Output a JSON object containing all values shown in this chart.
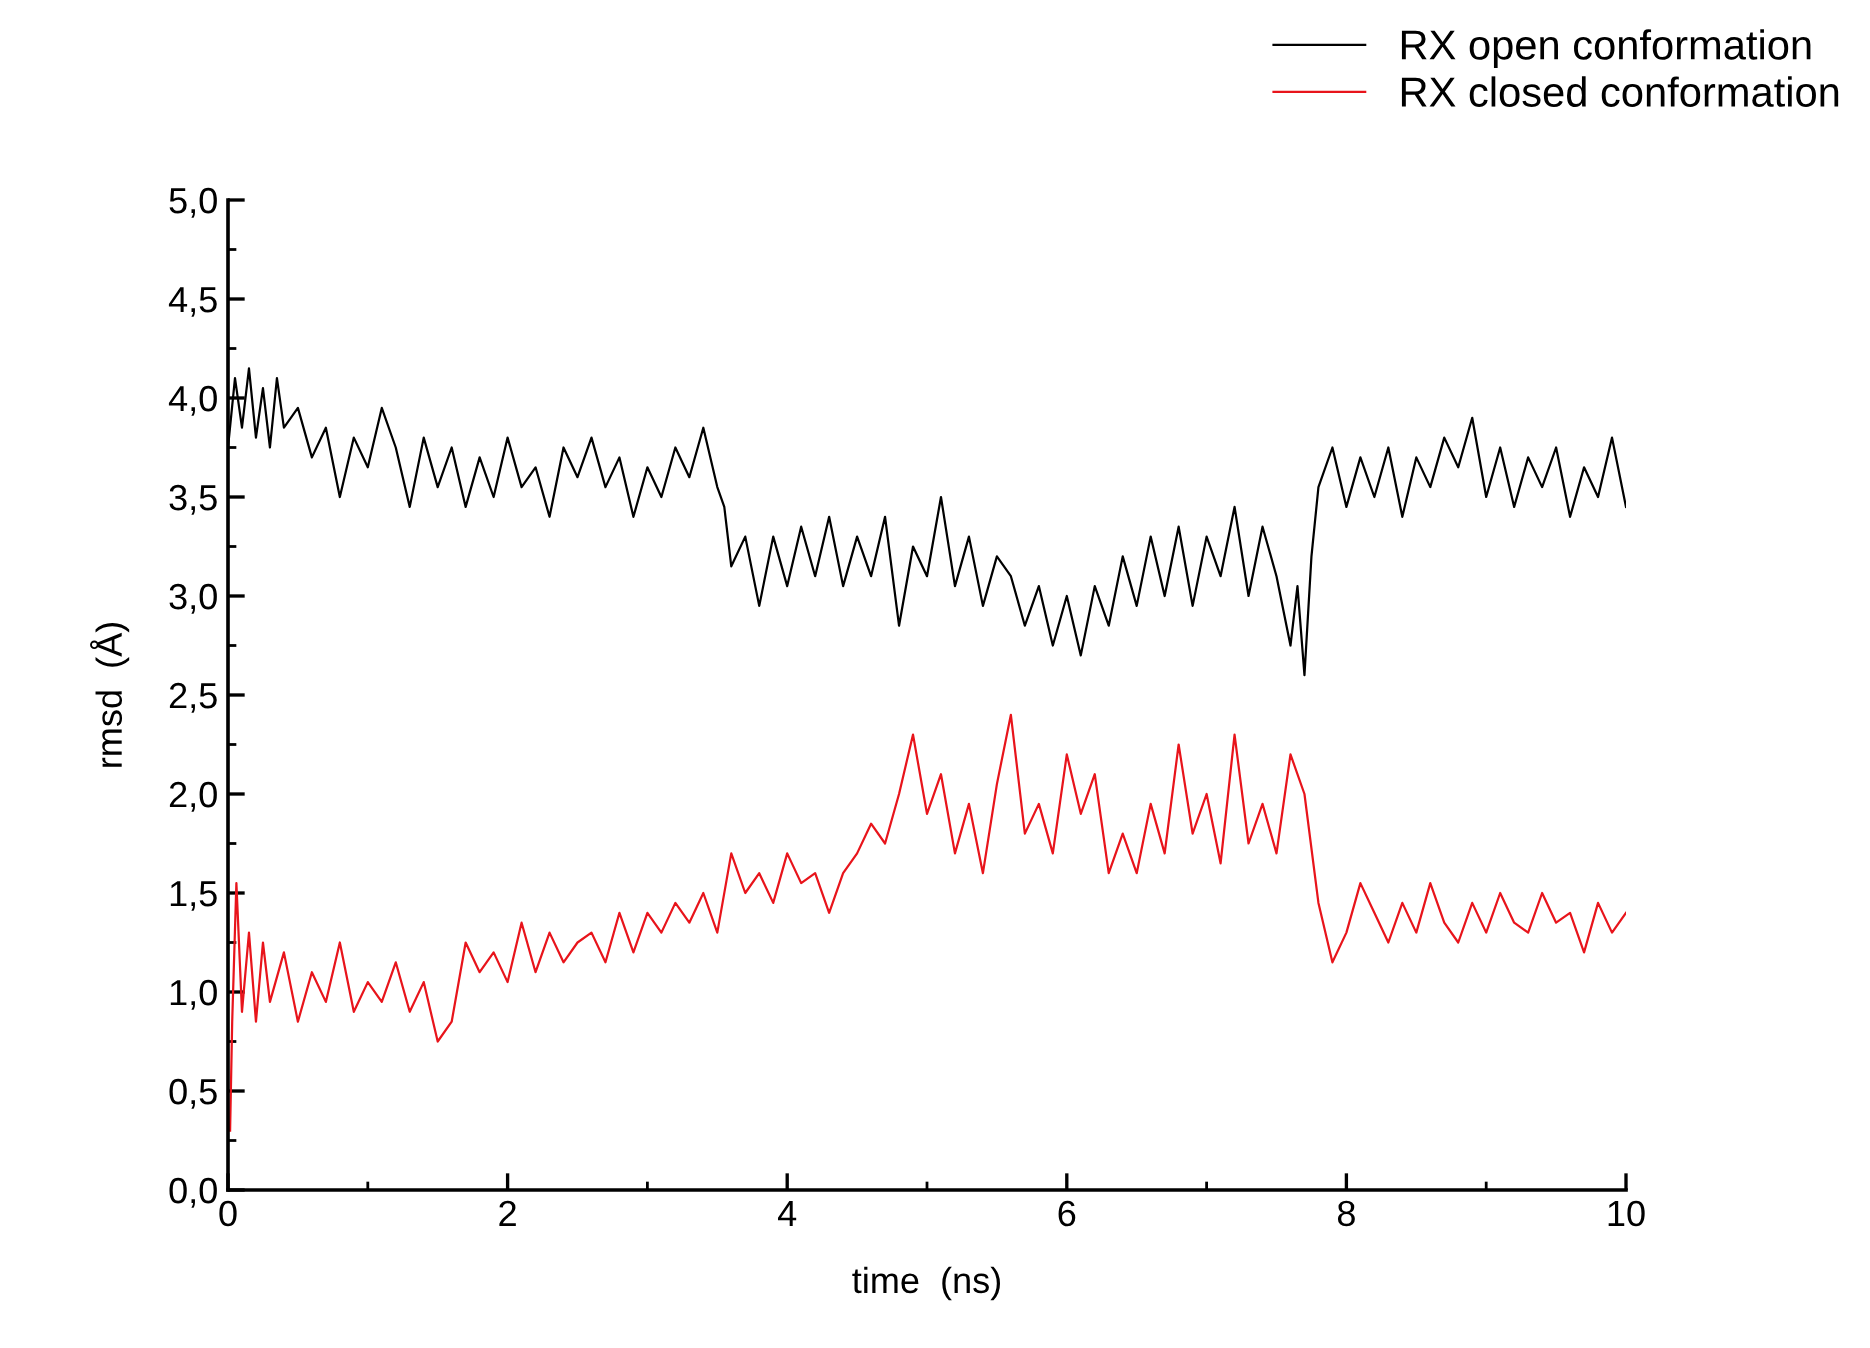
{
  "chart_data": {
    "type": "line",
    "xlabel": "time  (ns)",
    "ylabel": "rmsd  (Å)",
    "xlim": [
      0,
      10
    ],
    "xticks": [
      0,
      2,
      4,
      6,
      8,
      10
    ],
    "ylim": [
      0,
      5
    ],
    "yticks": [
      {
        "value": 0,
        "label": "0,0"
      },
      {
        "value": 0.5,
        "label": "0,5"
      },
      {
        "value": 1,
        "label": "1,0"
      },
      {
        "value": 1.5,
        "label": "1,5"
      },
      {
        "value": 2,
        "label": "2,0"
      },
      {
        "value": 2.5,
        "label": "2,5"
      },
      {
        "value": 3,
        "label": "3,0"
      },
      {
        "value": 3.5,
        "label": "3,5"
      },
      {
        "value": 4,
        "label": "4,0"
      },
      {
        "value": 4.5,
        "label": "4,5"
      },
      {
        "value": 5,
        "label": "5,0"
      }
    ],
    "grid": false,
    "legend": "top right",
    "marker": "none",
    "line_style": "solid",
    "series": [
      {
        "name": "RX open conformation",
        "color": "#000000",
        "x": [
          0,
          0.05,
          0.1,
          0.15,
          0.2,
          0.25,
          0.3,
          0.35,
          0.4,
          0.5,
          0.6,
          0.7,
          0.8,
          0.9,
          1.0,
          1.1,
          1.2,
          1.3,
          1.4,
          1.5,
          1.6,
          1.7,
          1.8,
          1.9,
          2.0,
          2.1,
          2.2,
          2.3,
          2.4,
          2.5,
          2.6,
          2.7,
          2.8,
          2.9,
          3.0,
          3.1,
          3.2,
          3.3,
          3.4,
          3.5,
          3.55,
          3.6,
          3.7,
          3.8,
          3.9,
          4.0,
          4.1,
          4.2,
          4.3,
          4.4,
          4.5,
          4.6,
          4.7,
          4.8,
          4.9,
          5.0,
          5.1,
          5.2,
          5.3,
          5.4,
          5.5,
          5.6,
          5.7,
          5.8,
          5.9,
          6.0,
          6.1,
          6.2,
          6.3,
          6.4,
          6.5,
          6.6,
          6.7,
          6.8,
          6.9,
          7.0,
          7.1,
          7.2,
          7.3,
          7.4,
          7.5,
          7.6,
          7.65,
          7.7,
          7.75,
          7.8,
          7.9,
          8.0,
          8.1,
          8.2,
          8.3,
          8.4,
          8.5,
          8.6,
          8.7,
          8.8,
          8.9,
          9.0,
          9.1,
          9.2,
          9.3,
          9.4,
          9.5,
          9.6,
          9.7,
          9.8,
          9.9,
          10.0
        ],
        "values": [
          3.75,
          4.1,
          3.85,
          4.15,
          3.8,
          4.05,
          3.75,
          4.1,
          3.85,
          3.95,
          3.7,
          3.85,
          3.5,
          3.8,
          3.65,
          3.95,
          3.75,
          3.45,
          3.8,
          3.55,
          3.75,
          3.45,
          3.7,
          3.5,
          3.8,
          3.55,
          3.65,
          3.4,
          3.75,
          3.6,
          3.8,
          3.55,
          3.7,
          3.4,
          3.65,
          3.5,
          3.75,
          3.6,
          3.85,
          3.55,
          3.45,
          3.15,
          3.3,
          2.95,
          3.3,
          3.05,
          3.35,
          3.1,
          3.4,
          3.05,
          3.3,
          3.1,
          3.4,
          2.85,
          3.25,
          3.1,
          3.5,
          3.05,
          3.3,
          2.95,
          3.2,
          3.1,
          2.85,
          3.05,
          2.75,
          3.0,
          2.7,
          3.05,
          2.85,
          3.2,
          2.95,
          3.3,
          3.0,
          3.35,
          2.95,
          3.3,
          3.1,
          3.45,
          3.0,
          3.35,
          3.1,
          2.75,
          3.05,
          2.6,
          3.2,
          3.55,
          3.75,
          3.45,
          3.7,
          3.5,
          3.75,
          3.4,
          3.7,
          3.55,
          3.8,
          3.65,
          3.9,
          3.5,
          3.75,
          3.45,
          3.7,
          3.55,
          3.75,
          3.4,
          3.65,
          3.5,
          3.8,
          3.45
        ]
      },
      {
        "name": "RX closed conformation",
        "color": "#e8141b",
        "x": [
          0.015,
          0.03,
          0.06,
          0.1,
          0.15,
          0.2,
          0.25,
          0.3,
          0.4,
          0.5,
          0.6,
          0.7,
          0.8,
          0.9,
          1.0,
          1.1,
          1.2,
          1.3,
          1.4,
          1.5,
          1.6,
          1.7,
          1.8,
          1.9,
          2.0,
          2.1,
          2.2,
          2.3,
          2.4,
          2.5,
          2.6,
          2.7,
          2.8,
          2.9,
          3.0,
          3.1,
          3.2,
          3.3,
          3.4,
          3.5,
          3.6,
          3.7,
          3.8,
          3.9,
          4.0,
          4.1,
          4.2,
          4.3,
          4.4,
          4.5,
          4.6,
          4.7,
          4.8,
          4.9,
          5.0,
          5.1,
          5.2,
          5.3,
          5.4,
          5.5,
          5.6,
          5.7,
          5.8,
          5.9,
          6.0,
          6.1,
          6.2,
          6.3,
          6.4,
          6.5,
          6.6,
          6.7,
          6.8,
          6.9,
          7.0,
          7.1,
          7.2,
          7.3,
          7.4,
          7.5,
          7.6,
          7.7,
          7.8,
          7.9,
          8.0,
          8.1,
          8.2,
          8.3,
          8.4,
          8.5,
          8.6,
          8.7,
          8.8,
          8.9,
          9.0,
          9.1,
          9.2,
          9.3,
          9.4,
          9.5,
          9.6,
          9.7,
          9.8,
          9.9,
          10.0
        ],
        "values": [
          0.3,
          0.85,
          1.55,
          0.9,
          1.3,
          0.85,
          1.25,
          0.95,
          1.2,
          0.85,
          1.1,
          0.95,
          1.25,
          0.9,
          1.05,
          0.95,
          1.15,
          0.9,
          1.05,
          0.75,
          0.85,
          1.25,
          1.1,
          1.2,
          1.05,
          1.35,
          1.1,
          1.3,
          1.15,
          1.25,
          1.3,
          1.15,
          1.4,
          1.2,
          1.4,
          1.3,
          1.45,
          1.35,
          1.5,
          1.3,
          1.7,
          1.5,
          1.6,
          1.45,
          1.7,
          1.55,
          1.6,
          1.4,
          1.6,
          1.7,
          1.85,
          1.75,
          2.0,
          2.3,
          1.9,
          2.1,
          1.7,
          1.95,
          1.6,
          2.05,
          2.4,
          1.8,
          1.95,
          1.7,
          2.2,
          1.9,
          2.1,
          1.6,
          1.8,
          1.6,
          1.95,
          1.7,
          2.25,
          1.8,
          2.0,
          1.65,
          2.3,
          1.75,
          1.95,
          1.7,
          2.2,
          2.0,
          1.45,
          1.15,
          1.3,
          1.55,
          1.4,
          1.25,
          1.45,
          1.3,
          1.55,
          1.35,
          1.25,
          1.45,
          1.3,
          1.5,
          1.35,
          1.3,
          1.5,
          1.35,
          1.4,
          1.2,
          1.45,
          1.3,
          1.4
        ]
      }
    ]
  }
}
